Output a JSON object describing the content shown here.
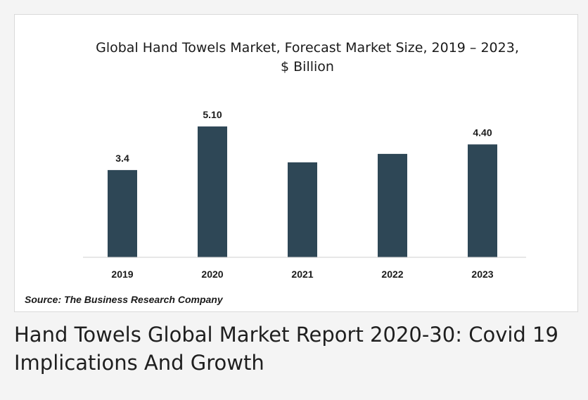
{
  "chart_data": {
    "type": "bar",
    "title": "Global Hand Towels Market, Forecast Market Size, 2019 – 2023,",
    "subtitle": "$ Billion",
    "categories": [
      "2019",
      "2020",
      "2021",
      "2022",
      "2023"
    ],
    "values": [
      3.4,
      5.1,
      3.7,
      4.03,
      4.4
    ],
    "data_labels": [
      "3.4",
      "5.10",
      "",
      "",
      "4.40"
    ],
    "xlabel": "",
    "ylabel": "",
    "ylim": [
      0,
      5.6
    ],
    "grid": false,
    "legend": "none",
    "bar_color": "#2e4756"
  },
  "source_text": "Source: The Business Research Company",
  "caption": "Hand Towels Global Market Report 2020-30: Covid 19 Implications And Growth"
}
